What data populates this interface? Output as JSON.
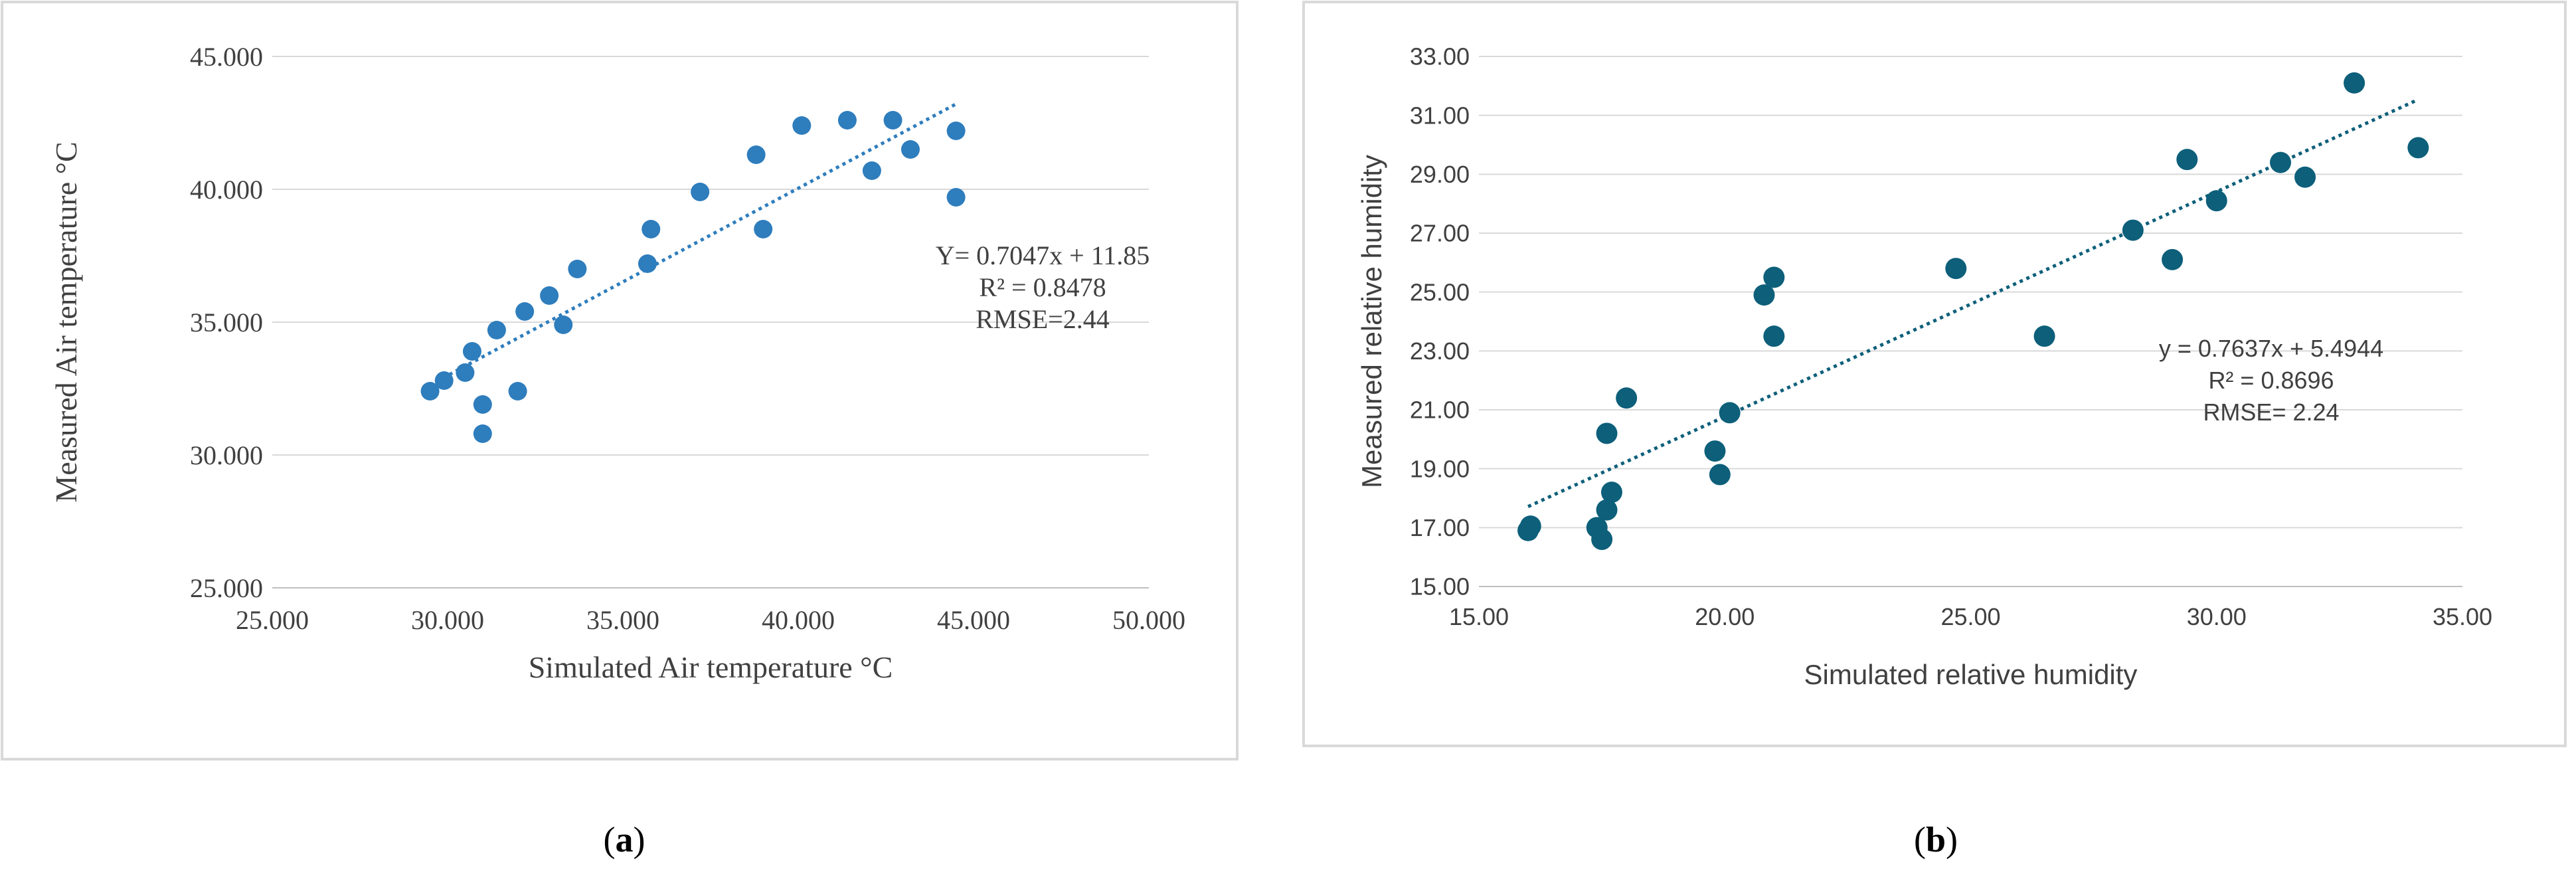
{
  "chart_data": [
    {
      "type": "scatter",
      "panel_label": "(a)",
      "panel_letter": "a",
      "xlabel": "Simulated Air temperature °C",
      "ylabel": "Measured Air temperature °C",
      "xlim": [
        25,
        50
      ],
      "ylim": [
        25,
        45
      ],
      "xticks": [
        "25.000",
        "30.000",
        "35.000",
        "40.000",
        "45.000",
        "50.000"
      ],
      "yticks": [
        "25.000",
        "30.000",
        "35.000",
        "40.000",
        "45.000"
      ],
      "grid": "horizontal",
      "point_color": "#2e7dbd",
      "trendline": {
        "slope": 0.7047,
        "intercept": 11.85,
        "x_range": [
          29.5,
          44.5
        ],
        "color": "#2e7dbd",
        "style": "dotted"
      },
      "annotation": [
        "Y= 0.7047x + 11.85",
        "R² = 0.8478",
        "RMSE=2.44"
      ],
      "series": [
        {
          "points": [
            [
              29.5,
              32.4
            ],
            [
              29.9,
              32.8
            ],
            [
              30.5,
              33.1
            ],
            [
              30.7,
              33.9
            ],
            [
              31.0,
              31.9
            ],
            [
              31.0,
              30.8
            ],
            [
              31.4,
              34.7
            ],
            [
              32.0,
              32.4
            ],
            [
              32.2,
              35.4
            ],
            [
              32.9,
              36.0
            ],
            [
              33.3,
              34.9
            ],
            [
              33.7,
              37.0
            ],
            [
              35.7,
              37.2
            ],
            [
              35.8,
              38.5
            ],
            [
              37.2,
              39.9
            ],
            [
              38.8,
              41.3
            ],
            [
              39.0,
              38.5
            ],
            [
              40.1,
              42.4
            ],
            [
              41.4,
              42.6
            ],
            [
              42.1,
              40.7
            ],
            [
              42.7,
              42.6
            ],
            [
              43.2,
              41.5
            ],
            [
              44.5,
              42.2
            ],
            [
              44.5,
              39.7
            ]
          ]
        }
      ]
    },
    {
      "type": "scatter",
      "panel_label": "(b)",
      "panel_letter": "b",
      "xlabel": "Simulated relative humidity",
      "ylabel": "Measured relative humidity",
      "xlim": [
        15,
        35
      ],
      "ylim": [
        15,
        33
      ],
      "xticks": [
        "15.00",
        "20.00",
        "25.00",
        "30.00",
        "35.00"
      ],
      "yticks": [
        "15.00",
        "17.00",
        "19.00",
        "21.00",
        "23.00",
        "25.00",
        "27.00",
        "29.00",
        "31.00",
        "33.00"
      ],
      "grid": "horizontal",
      "point_color": "#0d5f7a",
      "trendline": {
        "slope": 0.7637,
        "intercept": 5.4944,
        "x_range": [
          16.0,
          34.1
        ],
        "color": "#0d5f7a",
        "style": "dotted"
      },
      "annotation": [
        "y = 0.7637x + 5.4944",
        "R² = 0.8696",
        "RMSE= 2.24"
      ],
      "series": [
        {
          "points": [
            [
              16.0,
              16.9
            ],
            [
              16.05,
              17.05
            ],
            [
              17.4,
              17.0
            ],
            [
              17.5,
              16.6
            ],
            [
              17.6,
              17.6
            ],
            [
              17.7,
              18.2
            ],
            [
              17.6,
              20.2
            ],
            [
              18.0,
              21.4
            ],
            [
              19.8,
              19.6
            ],
            [
              19.9,
              18.8
            ],
            [
              20.1,
              20.9
            ],
            [
              20.8,
              24.9
            ],
            [
              21.0,
              25.5
            ],
            [
              21.0,
              23.5
            ],
            [
              24.7,
              25.8
            ],
            [
              26.5,
              23.5
            ],
            [
              28.3,
              27.1
            ],
            [
              29.1,
              26.1
            ],
            [
              29.4,
              29.5
            ],
            [
              30.0,
              28.1
            ],
            [
              31.3,
              29.4
            ],
            [
              31.8,
              28.9
            ],
            [
              32.8,
              32.1
            ],
            [
              34.1,
              29.9
            ]
          ]
        }
      ]
    }
  ]
}
